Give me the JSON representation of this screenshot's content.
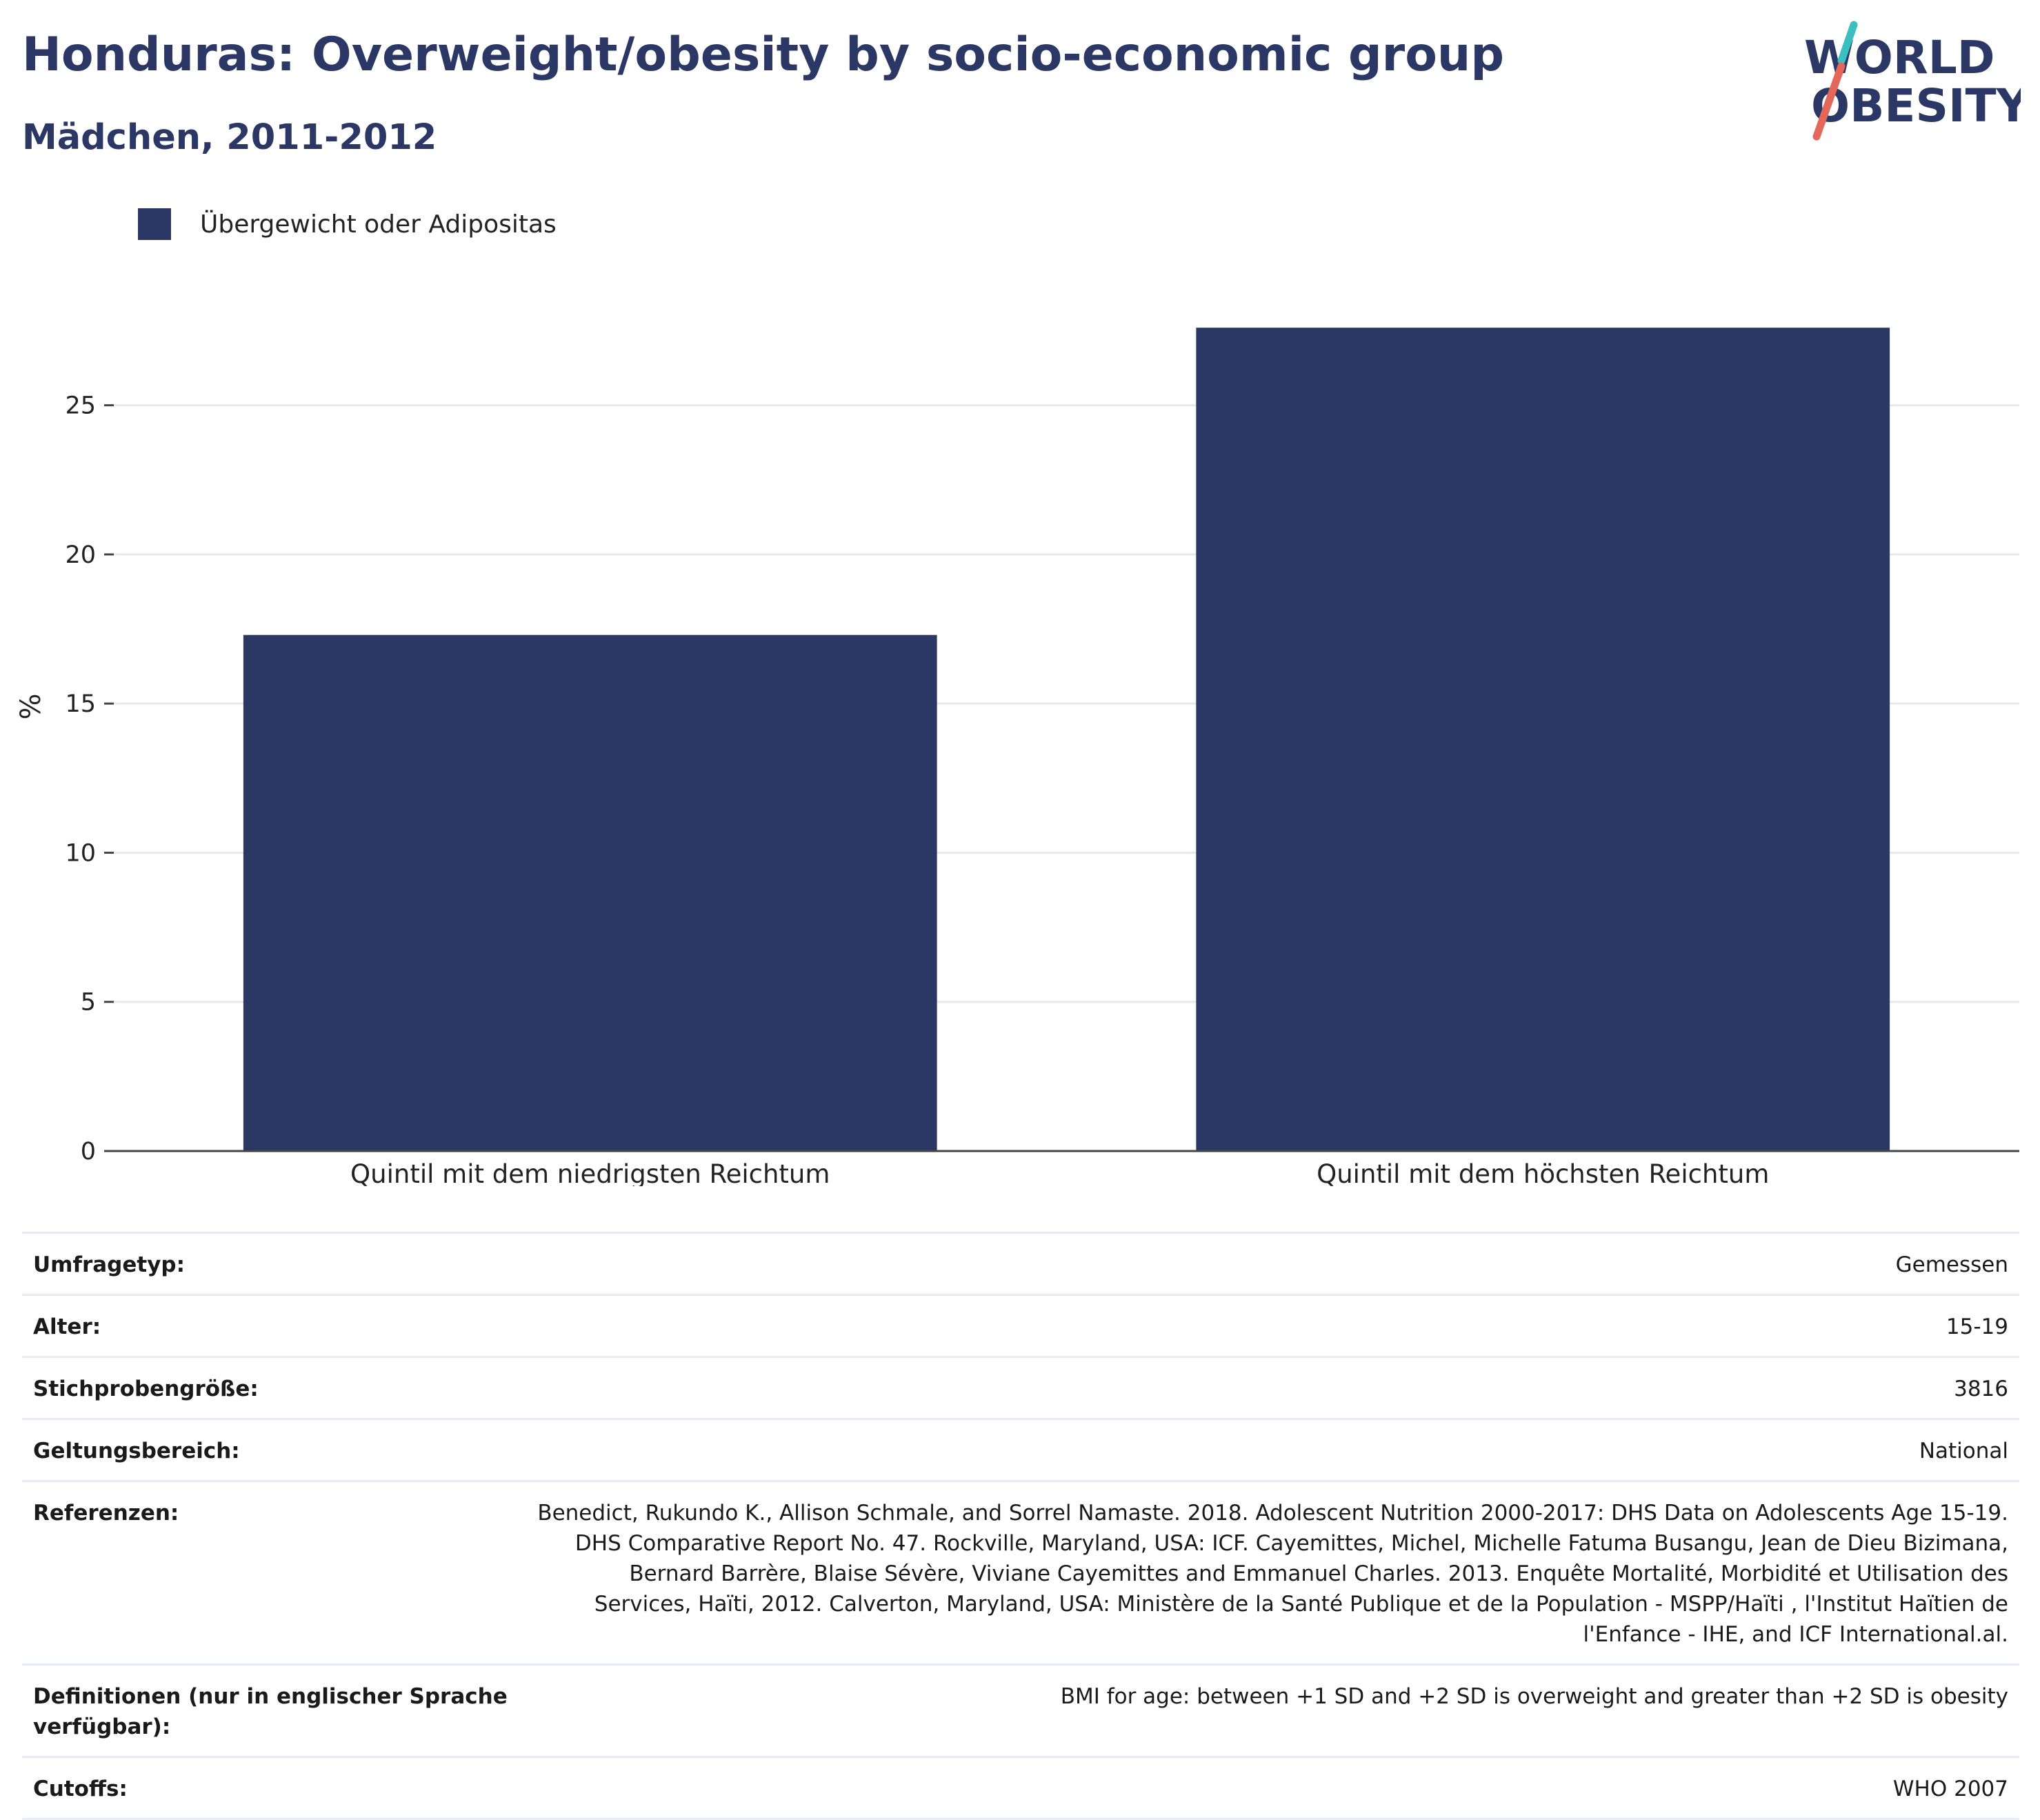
{
  "header": {
    "title": "Honduras: Overweight/obesity by socio-economic group",
    "subtitle": "Mädchen, 2011-2012"
  },
  "logo": {
    "line1": "WORLD",
    "line2": "OBESITY",
    "text_color": "#2b3764",
    "stripe_color_top": "#3bbfbf",
    "stripe_color_bottom": "#e5675a"
  },
  "legend": {
    "label": "Übergewicht oder Adipositas",
    "color": "#2b3764"
  },
  "chart_data": {
    "type": "bar",
    "categories": [
      "Quintil mit dem niedrigsten Reichtum",
      "Quintil mit dem höchsten Reichtum"
    ],
    "series": [
      {
        "name": "Übergewicht oder Adipositas",
        "values": [
          17.3,
          27.6
        ],
        "color": "#2b3764"
      }
    ],
    "title": "Honduras: Overweight/obesity by socio-economic group",
    "subtitle": "Mädchen, 2011-2012",
    "xlabel": "",
    "ylabel": "%",
    "ylim": [
      0,
      29.8
    ],
    "yticks": [
      0,
      5,
      10,
      15,
      20,
      25
    ],
    "grid": true,
    "legend_position": "top-left"
  },
  "meta": [
    {
      "key": "Umfragetyp:",
      "value": "Gemessen"
    },
    {
      "key": "Alter:",
      "value": "15-19"
    },
    {
      "key": "Stichprobengröße:",
      "value": "3816"
    },
    {
      "key": "Geltungsbereich:",
      "value": "National"
    },
    {
      "key": "Referenzen:",
      "value": "Benedict, Rukundo K., Allison Schmale, and Sorrel Namaste. 2018. Adolescent Nutrition 2000-2017: DHS Data on Adolescents Age 15-19. DHS Comparative Report No. 47. Rockville, Maryland, USA: ICF. Cayemittes, Michel, Michelle Fatuma Busangu, Jean de Dieu Bizimana, Bernard Barrère, Blaise Sévère, Viviane Cayemittes and Emmanuel Charles. 2013. Enquête Mortalité, Morbidité et Utilisation des Services, Haïti, 2012. Calverton, Maryland, USA: Ministère de la Santé Publique et de la Population - MSPP/Haïti , l'Institut Haïtien de l'Enfance - IHE, and ICF International.al."
    },
    {
      "key": "Definitionen (nur in englischer Sprache verfügbar):",
      "value": "BMI for age: between +1 SD and +2 SD is overweight and greater than +2 SD is obesity"
    },
    {
      "key": "Cutoffs:",
      "value": "WHO 2007"
    }
  ]
}
